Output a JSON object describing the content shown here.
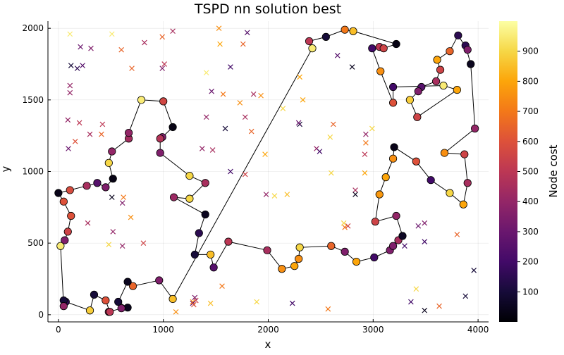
{
  "chart_data": {
    "type": "scatter",
    "title": "TSPD nn solution best",
    "xlabel": "x",
    "ylabel": "y",
    "xlim": [
      -100,
      4100
    ],
    "ylim": [
      -50,
      2050
    ],
    "xticks": [
      0,
      1000,
      2000,
      3000,
      4000
    ],
    "yticks": [
      0,
      500,
      1000,
      1500,
      2000
    ],
    "grid": true,
    "colorbar": {
      "label": "Node cost",
      "range": [
        0,
        1000
      ],
      "ticks": [
        100,
        200,
        300,
        400,
        500,
        600,
        700,
        800,
        900
      ],
      "colormap": "inferno"
    },
    "tour": [
      [
        0,
        850,
        40
      ],
      [
        110,
        870,
        580
      ],
      [
        270,
        900,
        450
      ],
      [
        370,
        920,
        250
      ],
      [
        450,
        890,
        350
      ],
      [
        520,
        950,
        30
      ],
      [
        480,
        1060,
        900
      ],
      [
        510,
        1140,
        400
      ],
      [
        670,
        1230,
        440
      ],
      [
        670,
        1270,
        400
      ],
      [
        790,
        1500,
        950
      ],
      [
        1000,
        1490,
        560
      ],
      [
        1090,
        1310,
        30
      ],
      [
        990,
        1240,
        350
      ],
      [
        970,
        1230,
        480
      ],
      [
        970,
        1130,
        350
      ],
      [
        1250,
        970,
        900
      ],
      [
        1400,
        920,
        450
      ],
      [
        1250,
        810,
        900
      ],
      [
        1100,
        820,
        420
      ],
      [
        1400,
        700,
        50
      ],
      [
        1340,
        570,
        150
      ],
      [
        1300,
        420,
        100
      ],
      [
        1450,
        420,
        850
      ],
      [
        1480,
        330,
        250
      ],
      [
        1620,
        510,
        500
      ],
      [
        1990,
        450,
        450
      ],
      [
        2130,
        320,
        750
      ],
      [
        2250,
        340,
        800
      ],
      [
        2290,
        390,
        750
      ],
      [
        2300,
        470,
        900
      ],
      [
        2600,
        480,
        650
      ],
      [
        2730,
        440,
        350
      ],
      [
        2840,
        370,
        800
      ],
      [
        3010,
        400,
        200
      ],
      [
        3160,
        450,
        350
      ],
      [
        3190,
        480,
        350
      ],
      [
        3240,
        520,
        450
      ],
      [
        3280,
        550,
        60
      ],
      [
        3220,
        690,
        400
      ],
      [
        3020,
        650,
        550
      ],
      [
        3060,
        840,
        770
      ],
      [
        3120,
        960,
        800
      ],
      [
        3190,
        1090,
        750
      ],
      [
        3200,
        1170,
        40
      ],
      [
        3410,
        1070,
        600
      ],
      [
        3550,
        940,
        200
      ],
      [
        3730,
        850,
        900
      ],
      [
        3860,
        770,
        800
      ],
      [
        3900,
        920,
        450
      ],
      [
        3870,
        1120,
        550
      ],
      [
        3680,
        1130,
        750
      ],
      [
        3970,
        1300,
        400
      ],
      [
        3930,
        1750,
        50
      ],
      [
        3880,
        1880,
        150
      ],
      [
        3900,
        1850,
        350
      ],
      [
        3810,
        1950,
        150
      ],
      [
        3730,
        1840,
        650
      ],
      [
        3610,
        1780,
        800
      ],
      [
        3640,
        1710,
        550
      ],
      [
        3600,
        1630,
        450
      ],
      [
        3460,
        1590,
        250
      ],
      [
        3430,
        1560,
        350
      ],
      [
        3350,
        1500,
        880
      ],
      [
        3420,
        1380,
        550
      ],
      [
        3800,
        1570,
        800
      ],
      [
        3670,
        1600,
        950
      ],
      [
        3190,
        1590,
        200
      ],
      [
        3190,
        1480,
        600
      ],
      [
        3070,
        1700,
        750
      ],
      [
        2990,
        1860,
        200
      ],
      [
        3060,
        1870,
        500
      ],
      [
        3100,
        1860,
        550
      ],
      [
        3220,
        1890,
        30
      ],
      [
        2810,
        1980,
        850
      ],
      [
        2730,
        1990,
        700
      ],
      [
        2550,
        1940,
        100
      ],
      [
        2390,
        1910,
        500
      ],
      [
        2420,
        1860,
        950
      ],
      [
        1090,
        110,
        850
      ],
      [
        960,
        240,
        350
      ],
      [
        710,
        200,
        650
      ],
      [
        660,
        230,
        50
      ],
      [
        570,
        90,
        100
      ],
      [
        660,
        50,
        50
      ],
      [
        600,
        45,
        350
      ],
      [
        480,
        20,
        450
      ],
      [
        490,
        20,
        500
      ],
      [
        450,
        100,
        600
      ],
      [
        340,
        140,
        100
      ],
      [
        300,
        30,
        880
      ],
      [
        70,
        90,
        150
      ],
      [
        50,
        100,
        100
      ],
      [
        50,
        60,
        400
      ],
      [
        20,
        480,
        950
      ],
      [
        60,
        520,
        350
      ],
      [
        90,
        580,
        550
      ],
      [
        120,
        690,
        600
      ],
      [
        50,
        790,
        600
      ],
      [
        0,
        850,
        40
      ]
    ],
    "crosses": [
      [
        110,
        1960,
        950
      ],
      [
        510,
        1960,
        950
      ],
      [
        210,
        1870,
        300
      ],
      [
        310,
        1860,
        350
      ],
      [
        230,
        1740,
        250
      ],
      [
        180,
        1720,
        150
      ],
      [
        120,
        1740,
        100
      ],
      [
        110,
        1600,
        400
      ],
      [
        110,
        1550,
        400
      ],
      [
        90,
        1360,
        400
      ],
      [
        200,
        1340,
        500
      ],
      [
        300,
        1260,
        450
      ],
      [
        410,
        1260,
        650
      ],
      [
        160,
        1210,
        600
      ],
      [
        95,
        1160,
        300
      ],
      [
        420,
        1330,
        500
      ],
      [
        600,
        1850,
        650
      ],
      [
        700,
        1720,
        650
      ],
      [
        820,
        1900,
        450
      ],
      [
        990,
        1940,
        650
      ],
      [
        1090,
        1980,
        450
      ],
      [
        990,
        1720,
        350
      ],
      [
        1010,
        1750,
        500
      ],
      [
        1530,
        2000,
        750
      ],
      [
        1540,
        1890,
        800
      ],
      [
        1800,
        1970,
        250
      ],
      [
        1760,
        1890,
        650
      ],
      [
        1640,
        1730,
        200
      ],
      [
        1570,
        1540,
        700
      ],
      [
        1460,
        1560,
        300
      ],
      [
        1410,
        1690,
        950
      ],
      [
        1730,
        1480,
        750
      ],
      [
        1860,
        1540,
        450
      ],
      [
        1930,
        1530,
        750
      ],
      [
        1410,
        1380,
        400
      ],
      [
        1780,
        1380,
        450
      ],
      [
        1590,
        1300,
        100
      ],
      [
        1840,
        1280,
        650
      ],
      [
        1370,
        1160,
        400
      ],
      [
        1470,
        1150,
        450
      ],
      [
        1640,
        1000,
        200
      ],
      [
        1780,
        980,
        550
      ],
      [
        1980,
        840,
        400
      ],
      [
        1970,
        1120,
        800
      ],
      [
        2140,
        1440,
        900
      ],
      [
        2300,
        1330,
        100
      ],
      [
        2290,
        1340,
        300
      ],
      [
        2300,
        1660,
        800
      ],
      [
        2330,
        1500,
        800
      ],
      [
        2460,
        1160,
        400
      ],
      [
        2490,
        1140,
        200
      ],
      [
        2590,
        1240,
        900
      ],
      [
        2620,
        1330,
        650
      ],
      [
        2660,
        1810,
        250
      ],
      [
        2800,
        1730,
        50
      ],
      [
        2930,
        1260,
        400
      ],
      [
        2990,
        1300,
        900
      ],
      [
        2930,
        1200,
        700
      ],
      [
        2920,
        1120,
        500
      ],
      [
        2920,
        990,
        800
      ],
      [
        2830,
        870,
        450
      ],
      [
        2830,
        840,
        50
      ],
      [
        2600,
        990,
        900
      ],
      [
        2180,
        840,
        850
      ],
      [
        2060,
        830,
        900
      ],
      [
        2720,
        640,
        900
      ],
      [
        2760,
        620,
        550
      ],
      [
        2730,
        610,
        700
      ],
      [
        3430,
        620,
        300
      ],
      [
        3490,
        640,
        350
      ],
      [
        3300,
        480,
        200
      ],
      [
        3490,
        510,
        200
      ],
      [
        3410,
        180,
        900
      ],
      [
        3360,
        90,
        200
      ],
      [
        3490,
        30,
        50
      ],
      [
        3800,
        560,
        650
      ],
      [
        3630,
        60,
        650
      ],
      [
        3880,
        130,
        100
      ],
      [
        3960,
        310,
        100
      ],
      [
        2570,
        40,
        700
      ],
      [
        2230,
        80,
        200
      ],
      [
        1890,
        90,
        900
      ],
      [
        1560,
        200,
        700
      ],
      [
        1450,
        80,
        850
      ],
      [
        1280,
        90,
        750
      ],
      [
        1310,
        100,
        550
      ],
      [
        1280,
        80,
        300
      ],
      [
        1300,
        120,
        350
      ],
      [
        1120,
        20,
        750
      ],
      [
        1290,
        70,
        600
      ],
      [
        610,
        780,
        350
      ],
      [
        510,
        820,
        50
      ],
      [
        690,
        680,
        750
      ],
      [
        480,
        490,
        900
      ],
      [
        520,
        580,
        400
      ],
      [
        280,
        640,
        450
      ],
      [
        610,
        480,
        400
      ],
      [
        810,
        500,
        550
      ],
      [
        620,
        820,
        700
      ]
    ]
  }
}
